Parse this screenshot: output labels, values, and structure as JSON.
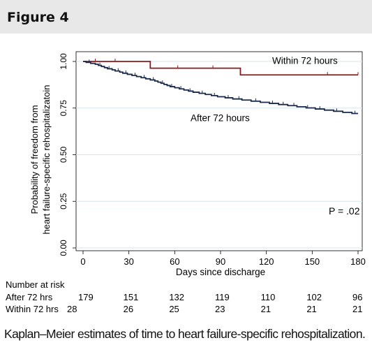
{
  "figure": {
    "title": "Figure 4",
    "caption": "Kaplan–Meier estimates of time to heart failure-specific rehospitalization."
  },
  "chart_data": {
    "type": "line",
    "subtype": "kaplan-meier step",
    "ylabel_line1": "Probability  of freedom  from",
    "ylabel_line2": "heart failure-specific rehospitalizatoin",
    "xlabel": "Days since discharge",
    "xlim": [
      0,
      180
    ],
    "ylim": [
      0,
      1
    ],
    "x_ticks": [
      0,
      30,
      60,
      90,
      120,
      150,
      180
    ],
    "y_ticks": [
      "0.00",
      "0.25",
      "0.50",
      "0.75",
      "1.00"
    ],
    "y_tick_values": [
      0,
      0.25,
      0.5,
      0.75,
      1.0
    ],
    "grid": "horizontal",
    "annotation": "P = .02",
    "series": [
      {
        "name": "Within 72 hours",
        "color": "#8b1a1a",
        "steps": [
          [
            0,
            1.0
          ],
          [
            44,
            0.964
          ],
          [
            103,
            0.928
          ],
          [
            180,
            0.928
          ]
        ],
        "censor_x": [
          8,
          21,
          62,
          85,
          160,
          180
        ]
      },
      {
        "name": "After 72 hours",
        "color": "#1b2a4a",
        "steps": [
          [
            0,
            1.0
          ],
          [
            2,
            0.995
          ],
          [
            5,
            0.99
          ],
          [
            8,
            0.985
          ],
          [
            10,
            0.979
          ],
          [
            12,
            0.973
          ],
          [
            14,
            0.967
          ],
          [
            16,
            0.961
          ],
          [
            19,
            0.955
          ],
          [
            21,
            0.949
          ],
          [
            24,
            0.943
          ],
          [
            26,
            0.937
          ],
          [
            29,
            0.931
          ],
          [
            32,
            0.925
          ],
          [
            35,
            0.919
          ],
          [
            38,
            0.913
          ],
          [
            41,
            0.907
          ],
          [
            44,
            0.901
          ],
          [
            47,
            0.895
          ],
          [
            49,
            0.889
          ],
          [
            51,
            0.883
          ],
          [
            53,
            0.877
          ],
          [
            55,
            0.871
          ],
          [
            57,
            0.865
          ],
          [
            60,
            0.859
          ],
          [
            63,
            0.853
          ],
          [
            66,
            0.847
          ],
          [
            69,
            0.841
          ],
          [
            72,
            0.835
          ],
          [
            76,
            0.829
          ],
          [
            80,
            0.823
          ],
          [
            84,
            0.817
          ],
          [
            88,
            0.811
          ],
          [
            93,
            0.805
          ],
          [
            98,
            0.799
          ],
          [
            104,
            0.793
          ],
          [
            110,
            0.787
          ],
          [
            116,
            0.781
          ],
          [
            122,
            0.775
          ],
          [
            128,
            0.769
          ],
          [
            134,
            0.763
          ],
          [
            140,
            0.757
          ],
          [
            146,
            0.751
          ],
          [
            152,
            0.745
          ],
          [
            158,
            0.739
          ],
          [
            164,
            0.733
          ],
          [
            170,
            0.727
          ],
          [
            176,
            0.721
          ],
          [
            180,
            0.721
          ]
        ],
        "censor_x": [
          4,
          11,
          17,
          23,
          28,
          34,
          40,
          46,
          52,
          58,
          64,
          70,
          78,
          86,
          95,
          102,
          113,
          124,
          131,
          138,
          147,
          155,
          166,
          178
        ]
      }
    ],
    "number_at_risk": {
      "label": "Number at risk",
      "rows": [
        {
          "label": "After 72 hrs",
          "values": [
            "179",
            "151",
            "132",
            "119",
            "110",
            "102",
            "96"
          ]
        },
        {
          "label": "Within 72 hrs",
          "values": [
            "28",
            "26",
            "25",
            "23",
            "21",
            "21",
            "21"
          ]
        }
      ]
    }
  }
}
